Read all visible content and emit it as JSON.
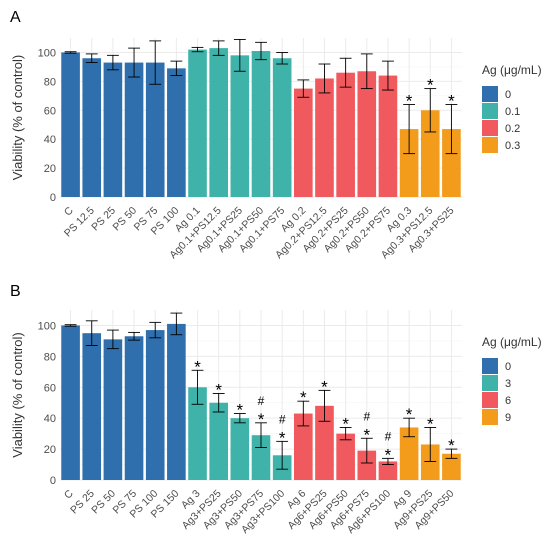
{
  "chart_data": [
    {
      "type": "bar",
      "panel_label": "A",
      "ylabel": "Viability (% of control)",
      "ylim": [
        0,
        110
      ],
      "yticks": [
        0,
        20,
        40,
        60,
        80,
        100
      ],
      "grid": true,
      "legend": {
        "title": "Ag (μg/mL)",
        "placement": "right",
        "entries": [
          {
            "label": "0",
            "color": "#2f6fad"
          },
          {
            "label": "0.1",
            "color": "#3fb3a9"
          },
          {
            "label": "0.2",
            "color": "#f0595e"
          },
          {
            "label": "0.3",
            "color": "#f39c1b"
          }
        ]
      },
      "categories": [
        "C",
        "PS 12.5",
        "PS 25",
        "PS 50",
        "PS 75",
        "PS 100",
        "Ag 0.1",
        "Ag0.1+PS12.5",
        "Ag0.1+PS25",
        "Ag0.1+PS50",
        "Ag0.1+PS75",
        "Ag 0.2",
        "Ag0.2+PS12.5",
        "Ag0.2+PS25",
        "Ag0.2+PS50",
        "Ag0.2+PS75",
        "Ag 0.3",
        "Ag0.3+PS12.5",
        "Ag0.3+PS25"
      ],
      "groups": [
        "0",
        "0",
        "0",
        "0",
        "0",
        "0",
        "0.1",
        "0.1",
        "0.1",
        "0.1",
        "0.1",
        "0.2",
        "0.2",
        "0.2",
        "0.2",
        "0.2",
        "0.3",
        "0.3",
        "0.3"
      ],
      "values": [
        100,
        96,
        93,
        93,
        93,
        89,
        102,
        103,
        98,
        101,
        96,
        75,
        82,
        86,
        87,
        84,
        47,
        60,
        47
      ],
      "errors": [
        0.5,
        3,
        5,
        10,
        15,
        5,
        1.5,
        5,
        11,
        6,
        4,
        6,
        10,
        10,
        12,
        10,
        17,
        15,
        17
      ],
      "annotations": [
        "",
        "",
        "",
        "",
        "",
        "",
        "",
        "",
        "",
        "",
        "",
        "",
        "",
        "",
        "",
        "",
        "*",
        "*",
        "*"
      ]
    },
    {
      "type": "bar",
      "panel_label": "B",
      "ylabel": "Viability (% of control)",
      "ylim": [
        0,
        110
      ],
      "yticks": [
        0,
        20,
        40,
        60,
        80,
        100
      ],
      "grid": true,
      "legend": {
        "title": "Ag (μg/mL)",
        "placement": "right",
        "entries": [
          {
            "label": "0",
            "color": "#2f6fad"
          },
          {
            "label": "3",
            "color": "#3fb3a9"
          },
          {
            "label": "6",
            "color": "#f0595e"
          },
          {
            "label": "9",
            "color": "#f39c1b"
          }
        ]
      },
      "categories": [
        "C",
        "PS 25",
        "PS 50",
        "PS 75",
        "PS 100",
        "PS 150",
        "Ag 3",
        "Ag3+PS25",
        "Ag3+PS50",
        "Ag3+PS75",
        "Ag3+PS100",
        "Ag 6",
        "Ag6+PS25",
        "Ag6+PS50",
        "Ag6+PS75",
        "Ag6+PS100",
        "Ag 9",
        "Ag9+PS25",
        "Ag9+PS50"
      ],
      "groups": [
        "0",
        "0",
        "0",
        "0",
        "0",
        "0",
        "3",
        "3",
        "3",
        "3",
        "3",
        "6",
        "6",
        "6",
        "6",
        "6",
        "9",
        "9",
        "9"
      ],
      "values": [
        100,
        95,
        91,
        93,
        97,
        101,
        60,
        50,
        40,
        29,
        16,
        43,
        48,
        30,
        19,
        12,
        34,
        23,
        17
      ],
      "errors": [
        0.5,
        8,
        6,
        2.5,
        5,
        7,
        11,
        6,
        3,
        8,
        9,
        8,
        10,
        4,
        8,
        2,
        6,
        11,
        3
      ],
      "annotations": [
        "",
        "",
        "",
        "",
        "",
        "",
        "*",
        "*",
        "*",
        "#\n*",
        "#\n*",
        "*",
        "*",
        "*",
        "#\n*",
        "#\n*",
        "*",
        "*",
        "*"
      ]
    }
  ],
  "colors": {
    "background": "#ffffff",
    "grid": "#ebebeb",
    "text": "#333333",
    "tick_text": "#4d4d4d"
  }
}
